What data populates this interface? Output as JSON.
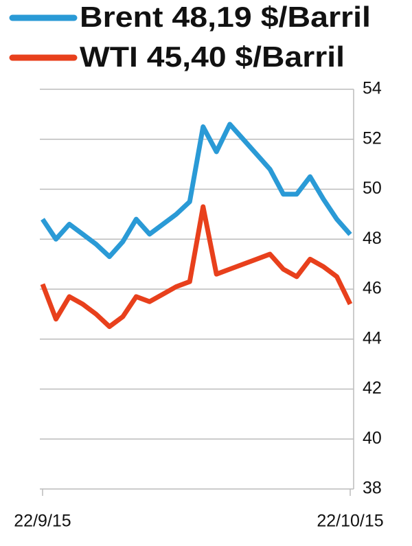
{
  "chart_data": {
    "type": "line",
    "categories": [
      "22/9/15",
      null,
      null,
      null,
      null,
      null,
      null,
      null,
      null,
      null,
      null,
      null,
      null,
      null,
      null,
      null,
      null,
      null,
      null,
      null,
      null,
      null,
      null,
      "22/10/15"
    ],
    "series": [
      {
        "name": "Brent 48,19 $/Barril",
        "color": "#2a9ad6",
        "values": [
          48.8,
          48.0,
          48.6,
          48.2,
          47.8,
          47.3,
          47.9,
          48.8,
          48.2,
          48.6,
          49.0,
          49.5,
          52.5,
          51.5,
          52.6,
          52.0,
          51.4,
          50.8,
          49.8,
          49.8,
          50.5,
          49.6,
          48.8,
          48.19
        ]
      },
      {
        "name": "WTI 45,40 $/Barril",
        "color": "#e8401c",
        "values": [
          46.2,
          44.8,
          45.7,
          45.4,
          45.0,
          44.5,
          44.9,
          45.7,
          45.5,
          45.8,
          46.1,
          46.3,
          49.3,
          46.6,
          46.8,
          47.0,
          47.2,
          47.4,
          46.8,
          46.5,
          47.2,
          46.9,
          46.5,
          45.4
        ]
      }
    ],
    "ylim": [
      38,
      54
    ],
    "yticks": [
      38,
      40,
      42,
      44,
      46,
      48,
      50,
      52,
      54
    ],
    "grid": true,
    "legend": "top-left"
  }
}
